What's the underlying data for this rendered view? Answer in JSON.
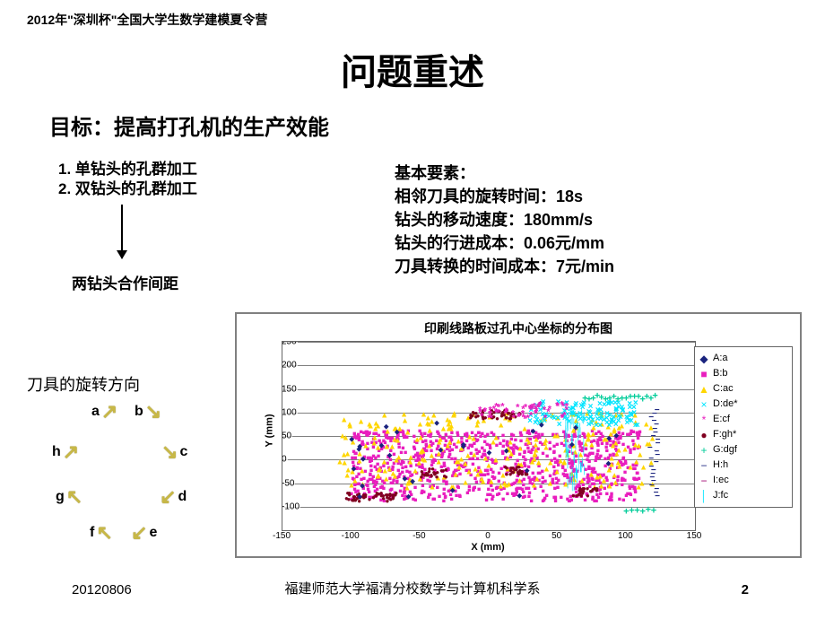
{
  "header": "2012年\"深圳杯\"全国大学生数学建模夏令营",
  "title": "问题重述",
  "subtitle": "目标：提高打孔机的生产效能",
  "left_list": {
    "item1": "1. 单钻头的孔群加工",
    "item2": "2. 双钻头的孔群加工"
  },
  "coop_label": "两钻头合作间距",
  "right_block": {
    "heading": "基本要素：",
    "line1": "相邻刀具的旋转时间：18s",
    "line2": "钻头的移动速度：180mm/s",
    "line3": "钻头的行进成本：0.06元/mm",
    "line4": "刀具转换的时间成本：7元/min"
  },
  "rot_label": "刀具的旋转方向",
  "ring": {
    "a": "a",
    "b": "b",
    "c": "c",
    "d": "d",
    "e": "e",
    "f": "f",
    "g": "g",
    "h": "h"
  },
  "chart": {
    "title": "印刷线路板过孔中心坐标的分布图",
    "xlabel": "X (mm)",
    "ylabel": "Y (mm)",
    "xlim": [
      -150,
      150
    ],
    "ylim": [
      -150,
      250
    ],
    "xticks": {
      "n150": "-150",
      "n100": "-100",
      "n50": "-50",
      "z": "0",
      "p50": "50",
      "p100": "100",
      "p150": "150"
    },
    "yticks": {
      "n150": "-150",
      "n100": "-100",
      "n50": "-50",
      "z": "0",
      "p50": "50",
      "p100": "100",
      "p150": "150",
      "p200": "200",
      "p250": "250"
    },
    "colors": {
      "A": "#1a237e",
      "B": "#e91ebe",
      "C": "#ffd600",
      "D": "#00e5ff",
      "E": "#e91ebe",
      "F": "#800020",
      "G": "#00cc99",
      "H": "#1a237e",
      "I": "#a0006e",
      "J": "#00e5ff"
    },
    "legend": {
      "A": "A:a",
      "B": "B:b",
      "C": "C:ac",
      "D": "D:de*",
      "E": "E:cf",
      "F": "F:gh*",
      "G": "G:dgf",
      "H": "H:h",
      "I": "I:ec",
      "J": "J:fc"
    }
  },
  "footer": {
    "date": "20120806",
    "org": "福建师范大学福清分校数学与计算机科学系",
    "page": "2"
  }
}
